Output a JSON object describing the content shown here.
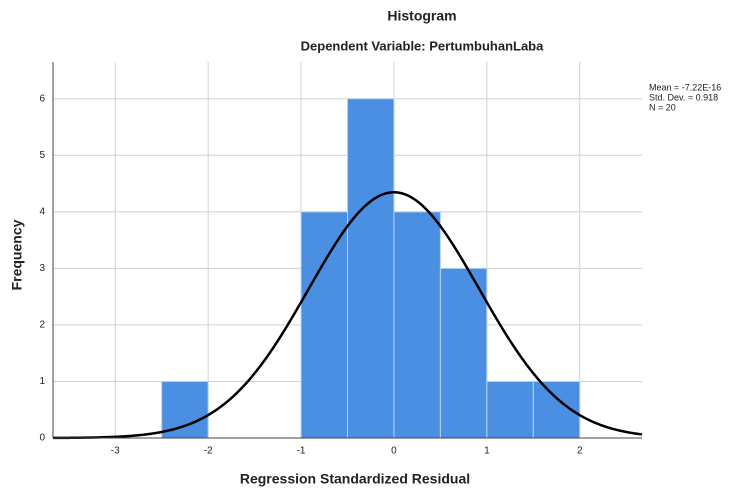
{
  "chart_data": {
    "type": "histogram",
    "title": "Histogram",
    "subtitle": "Dependent Variable: PertumbuhanLaba",
    "xlabel": "Regression Standardized Residual",
    "ylabel": "Frequency",
    "bins": [
      -2.5,
      -2,
      -1.5,
      -1,
      -0.5,
      0,
      0.5,
      1,
      1.5,
      2
    ],
    "values": [
      1,
      0,
      0,
      4,
      6,
      4,
      3,
      1,
      1
    ],
    "color": "#4b8fe2",
    "curve_color": "#000000",
    "xlim": [
      -3.67,
      2.67
    ],
    "xticks": [
      -3,
      -2,
      -1,
      0,
      1,
      2
    ],
    "ylim": [
      0,
      6.65
    ],
    "yticks": [
      0,
      1,
      2,
      3,
      4,
      5,
      6
    ],
    "grid": true,
    "stats": [
      {
        "value": -7.22e-16,
        "label": "Mean = -7.22E-16"
      },
      {
        "value": 0.918,
        "label": "Std. Dev. = 0.918"
      },
      {
        "value": 20,
        "label": "N = 20"
      }
    ]
  }
}
